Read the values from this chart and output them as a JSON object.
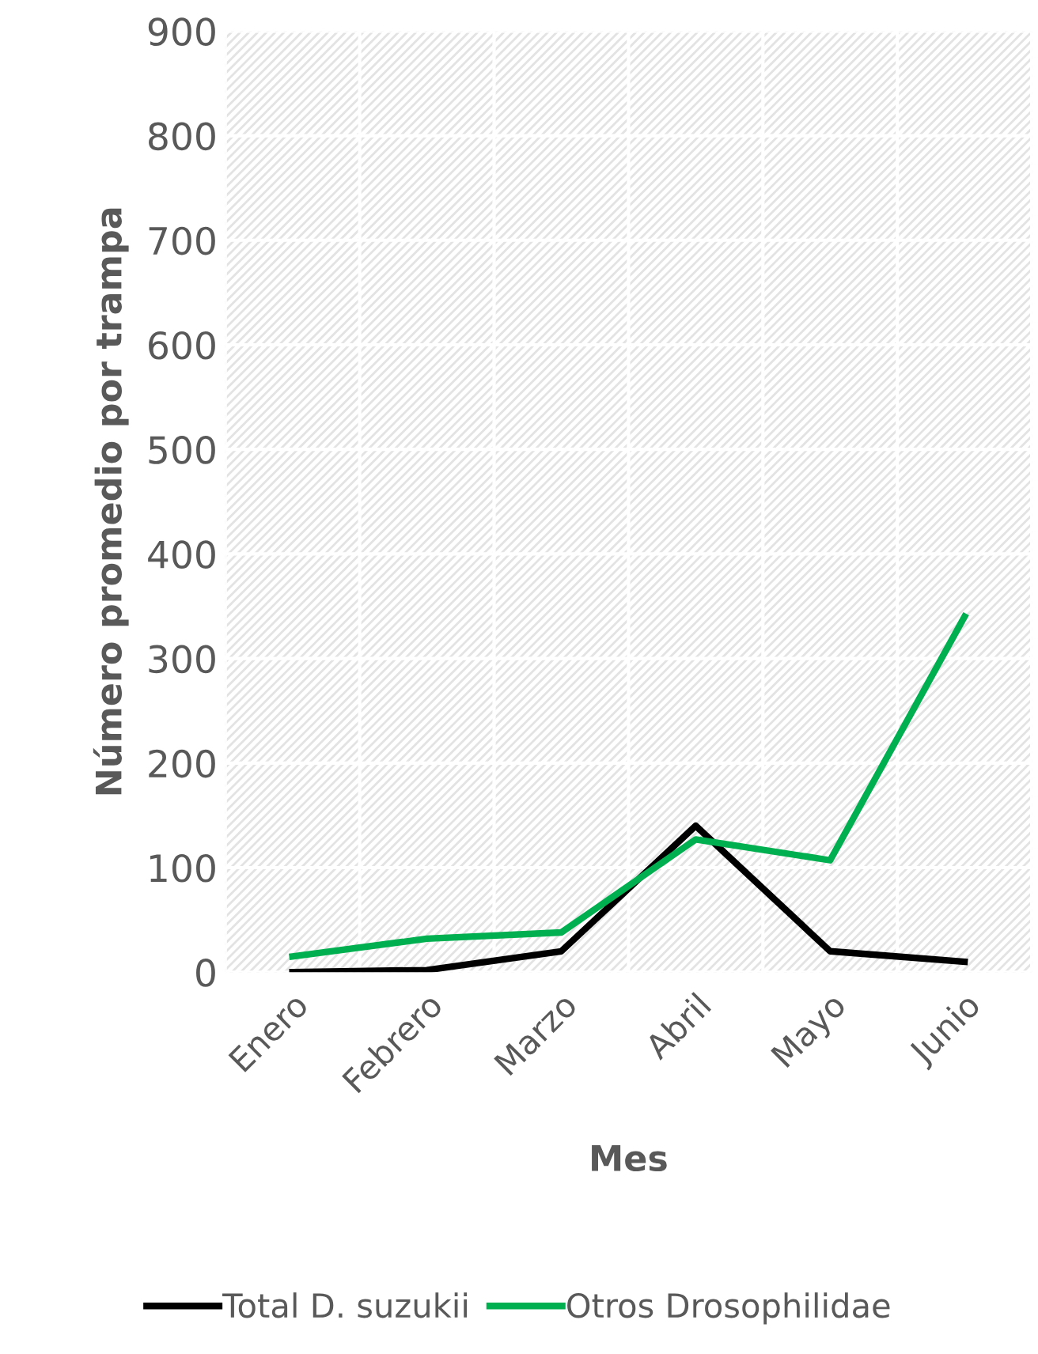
{
  "chart_data": {
    "type": "line",
    "xlabel": "Mes",
    "ylabel": "Número promedio por trampa",
    "categories": [
      "Enero",
      "Febrero",
      "Marzo",
      "Abril",
      "Mayo",
      "Junio"
    ],
    "series": [
      {
        "name": "Total D. suzukii",
        "color": "#000000",
        "values": [
          0,
          2,
          20,
          140,
          20,
          10
        ]
      },
      {
        "name": "Otros Drosophilidae",
        "color": "#00b050",
        "values": [
          15,
          32,
          38,
          127,
          107,
          340
        ]
      }
    ],
    "ylim": [
      0,
      900
    ],
    "yticks": [
      0,
      100,
      200,
      300,
      400,
      500,
      600,
      700,
      800,
      900
    ],
    "grid": true,
    "legend": "bottom",
    "line_style": "solid",
    "marker": "none"
  }
}
